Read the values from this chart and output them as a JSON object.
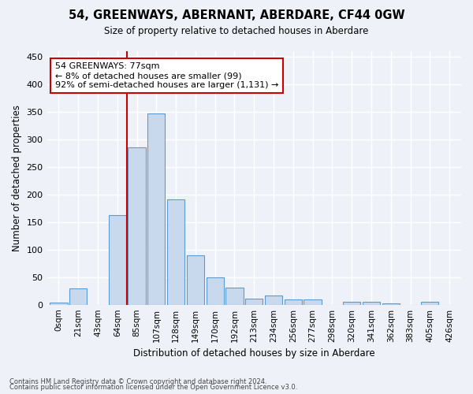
{
  "title": "54, GREENWAYS, ABERNANT, ABERDARE, CF44 0GW",
  "subtitle": "Size of property relative to detached houses in Aberdare",
  "xlabel": "Distribution of detached houses by size in Aberdare",
  "ylabel": "Number of detached properties",
  "bar_labels": [
    "0sqm",
    "21sqm",
    "43sqm",
    "64sqm",
    "85sqm",
    "107sqm",
    "128sqm",
    "149sqm",
    "170sqm",
    "192sqm",
    "213sqm",
    "234sqm",
    "256sqm",
    "277sqm",
    "298sqm",
    "320sqm",
    "341sqm",
    "362sqm",
    "383sqm",
    "405sqm",
    "426sqm"
  ],
  "bar_values": [
    4,
    30,
    0,
    163,
    285,
    347,
    191,
    90,
    50,
    31,
    11,
    17,
    9,
    10,
    0,
    5,
    5,
    2,
    0,
    5,
    0
  ],
  "bar_color": "#c9d9ed",
  "bar_edge_color": "#5b9bd5",
  "bar_edge_width": 0.8,
  "marker_color": "#cc0000",
  "annotation_text": "54 GREENWAYS: 77sqm\n← 8% of detached houses are smaller (99)\n92% of semi-detached houses are larger (1,131) →",
  "annotation_box_color": "#ffffff",
  "annotation_box_edge_color": "#cc0000",
  "ylim": [
    0,
    460
  ],
  "yticks": [
    0,
    50,
    100,
    150,
    200,
    250,
    300,
    350,
    400,
    450
  ],
  "footer_line1": "Contains HM Land Registry data © Crown copyright and database right 2024.",
  "footer_line2": "Contains public sector information licensed under the Open Government Licence v3.0.",
  "bg_color": "#eef2f8",
  "plot_bg_color": "#eef2f8",
  "grid_color": "#ffffff",
  "figsize": [
    6.0,
    5.0
  ],
  "dpi": 100
}
